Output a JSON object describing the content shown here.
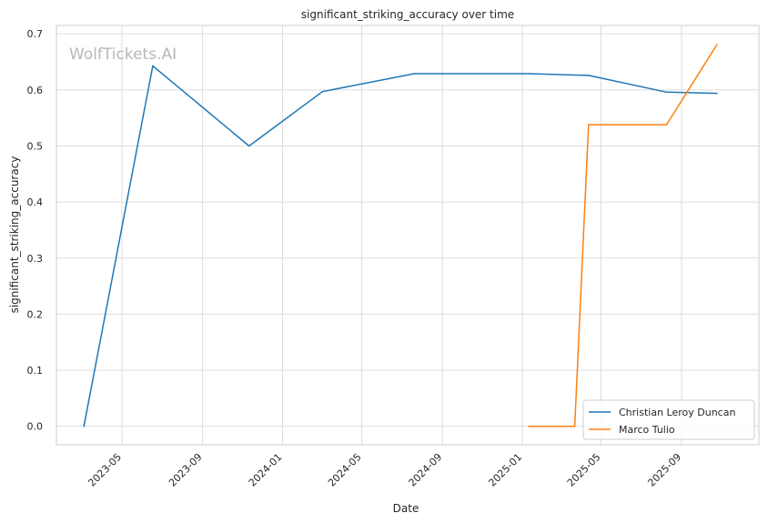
{
  "chart_data": {
    "type": "line",
    "title": "significant_striking_accuracy over time",
    "xlabel": "Date",
    "ylabel": "significant_striking_accuracy",
    "watermark": "WolfTickets.AI",
    "xlim": [
      "2023-01-21",
      "2025-12-28"
    ],
    "ylim": [
      -0.033,
      0.715
    ],
    "x_ticks": [
      "2023-05-01",
      "2023-09-01",
      "2024-01-01",
      "2024-05-01",
      "2024-09-01",
      "2025-01-01",
      "2025-05-01",
      "2025-09-01"
    ],
    "x_tick_labels": [
      "2023-05",
      "2023-09",
      "2024-01",
      "2024-05",
      "2024-09",
      "2025-01",
      "2025-05",
      "2025-09"
    ],
    "y_ticks": [
      0.0,
      0.1,
      0.2,
      0.3,
      0.4,
      0.5,
      0.6,
      0.7
    ],
    "y_tick_labels": [
      "0.0",
      "0.1",
      "0.2",
      "0.3",
      "0.4",
      "0.5",
      "0.6",
      "0.7"
    ],
    "grid": true,
    "legend_position": "lower-right",
    "series": [
      {
        "name": "Christian Leroy Duncan",
        "color": "#1f77b4",
        "points": [
          {
            "x": "2023-03-04",
            "y": 0.0
          },
          {
            "x": "2023-06-17",
            "y": 0.643
          },
          {
            "x": "2023-11-11",
            "y": 0.5
          },
          {
            "x": "2024-03-02",
            "y": 0.597
          },
          {
            "x": "2024-07-20",
            "y": 0.629
          },
          {
            "x": "2025-01-11",
            "y": 0.629
          },
          {
            "x": "2025-04-12",
            "y": 0.626
          },
          {
            "x": "2025-08-09",
            "y": 0.596
          },
          {
            "x": "2025-10-25",
            "y": 0.594
          }
        ]
      },
      {
        "name": "Marco Tulio",
        "color": "#ff7f0e",
        "points": [
          {
            "x": "2025-01-11",
            "y": 0.0
          },
          {
            "x": "2025-03-22",
            "y": 0.0
          },
          {
            "x": "2025-04-12",
            "y": 0.538
          },
          {
            "x": "2025-08-09",
            "y": 0.538
          },
          {
            "x": "2025-10-25",
            "y": 0.681
          }
        ]
      }
    ]
  }
}
